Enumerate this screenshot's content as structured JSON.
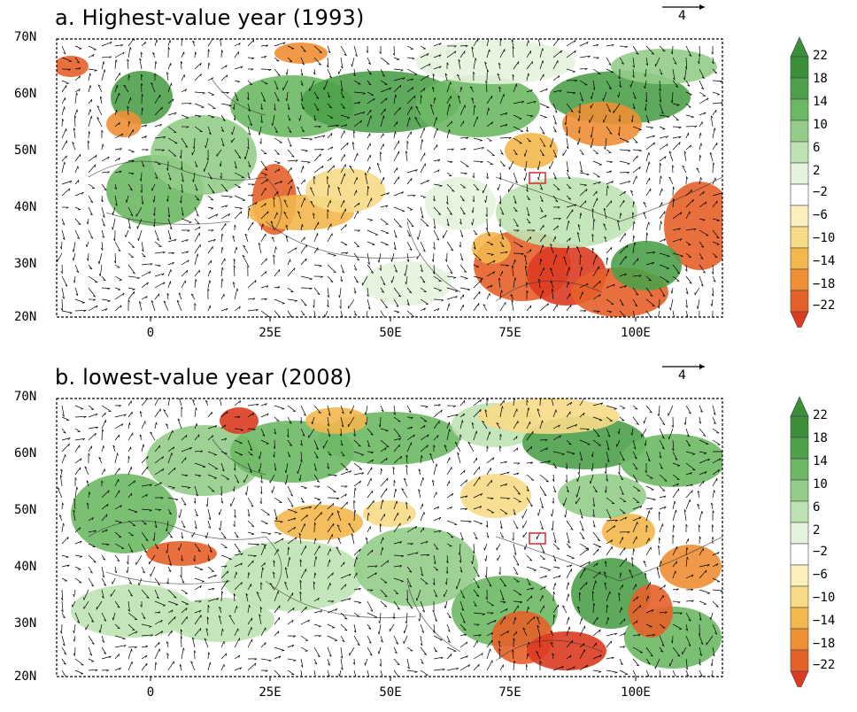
{
  "panels": [
    {
      "id": "a",
      "title": "a. Highest-value year (1993)",
      "reference_vector_label": "4",
      "lat_labels": [
        "70N",
        "60N",
        "50N",
        "40N",
        "30N",
        "20N"
      ],
      "lon_labels": [
        "0",
        "25E",
        "50E",
        "75E",
        "100E"
      ],
      "colorbar_labels": [
        "22",
        "18",
        "14",
        "10",
        "6",
        "2",
        "−2",
        "−6",
        "−10",
        "−14",
        "−18",
        "−22"
      ]
    },
    {
      "id": "b",
      "title": "b. lowest-value year (2008)",
      "reference_vector_label": "4",
      "lat_labels": [
        "70N",
        "60N",
        "50N",
        "40N",
        "30N",
        "20N"
      ],
      "lon_labels": [
        "0",
        "25E",
        "50E",
        "75E",
        "100E"
      ],
      "colorbar_labels": [
        "22",
        "18",
        "14",
        "10",
        "6",
        "2",
        "−2",
        "−6",
        "−10",
        "−14",
        "−18",
        "−22"
      ]
    }
  ],
  "colors": {
    "positive_shades": [
      "#3a8f38",
      "#4ea04a",
      "#6db864",
      "#94cd8a",
      "#bfe2b3",
      "#e4f3dc"
    ],
    "neutral": "#ffffff",
    "negative_shades": [
      "#fbf0bd",
      "#f7da86",
      "#f3b74e",
      "#ee8f35",
      "#e6602a",
      "#dc3b21"
    ],
    "region_box": "#d62b2b"
  }
}
